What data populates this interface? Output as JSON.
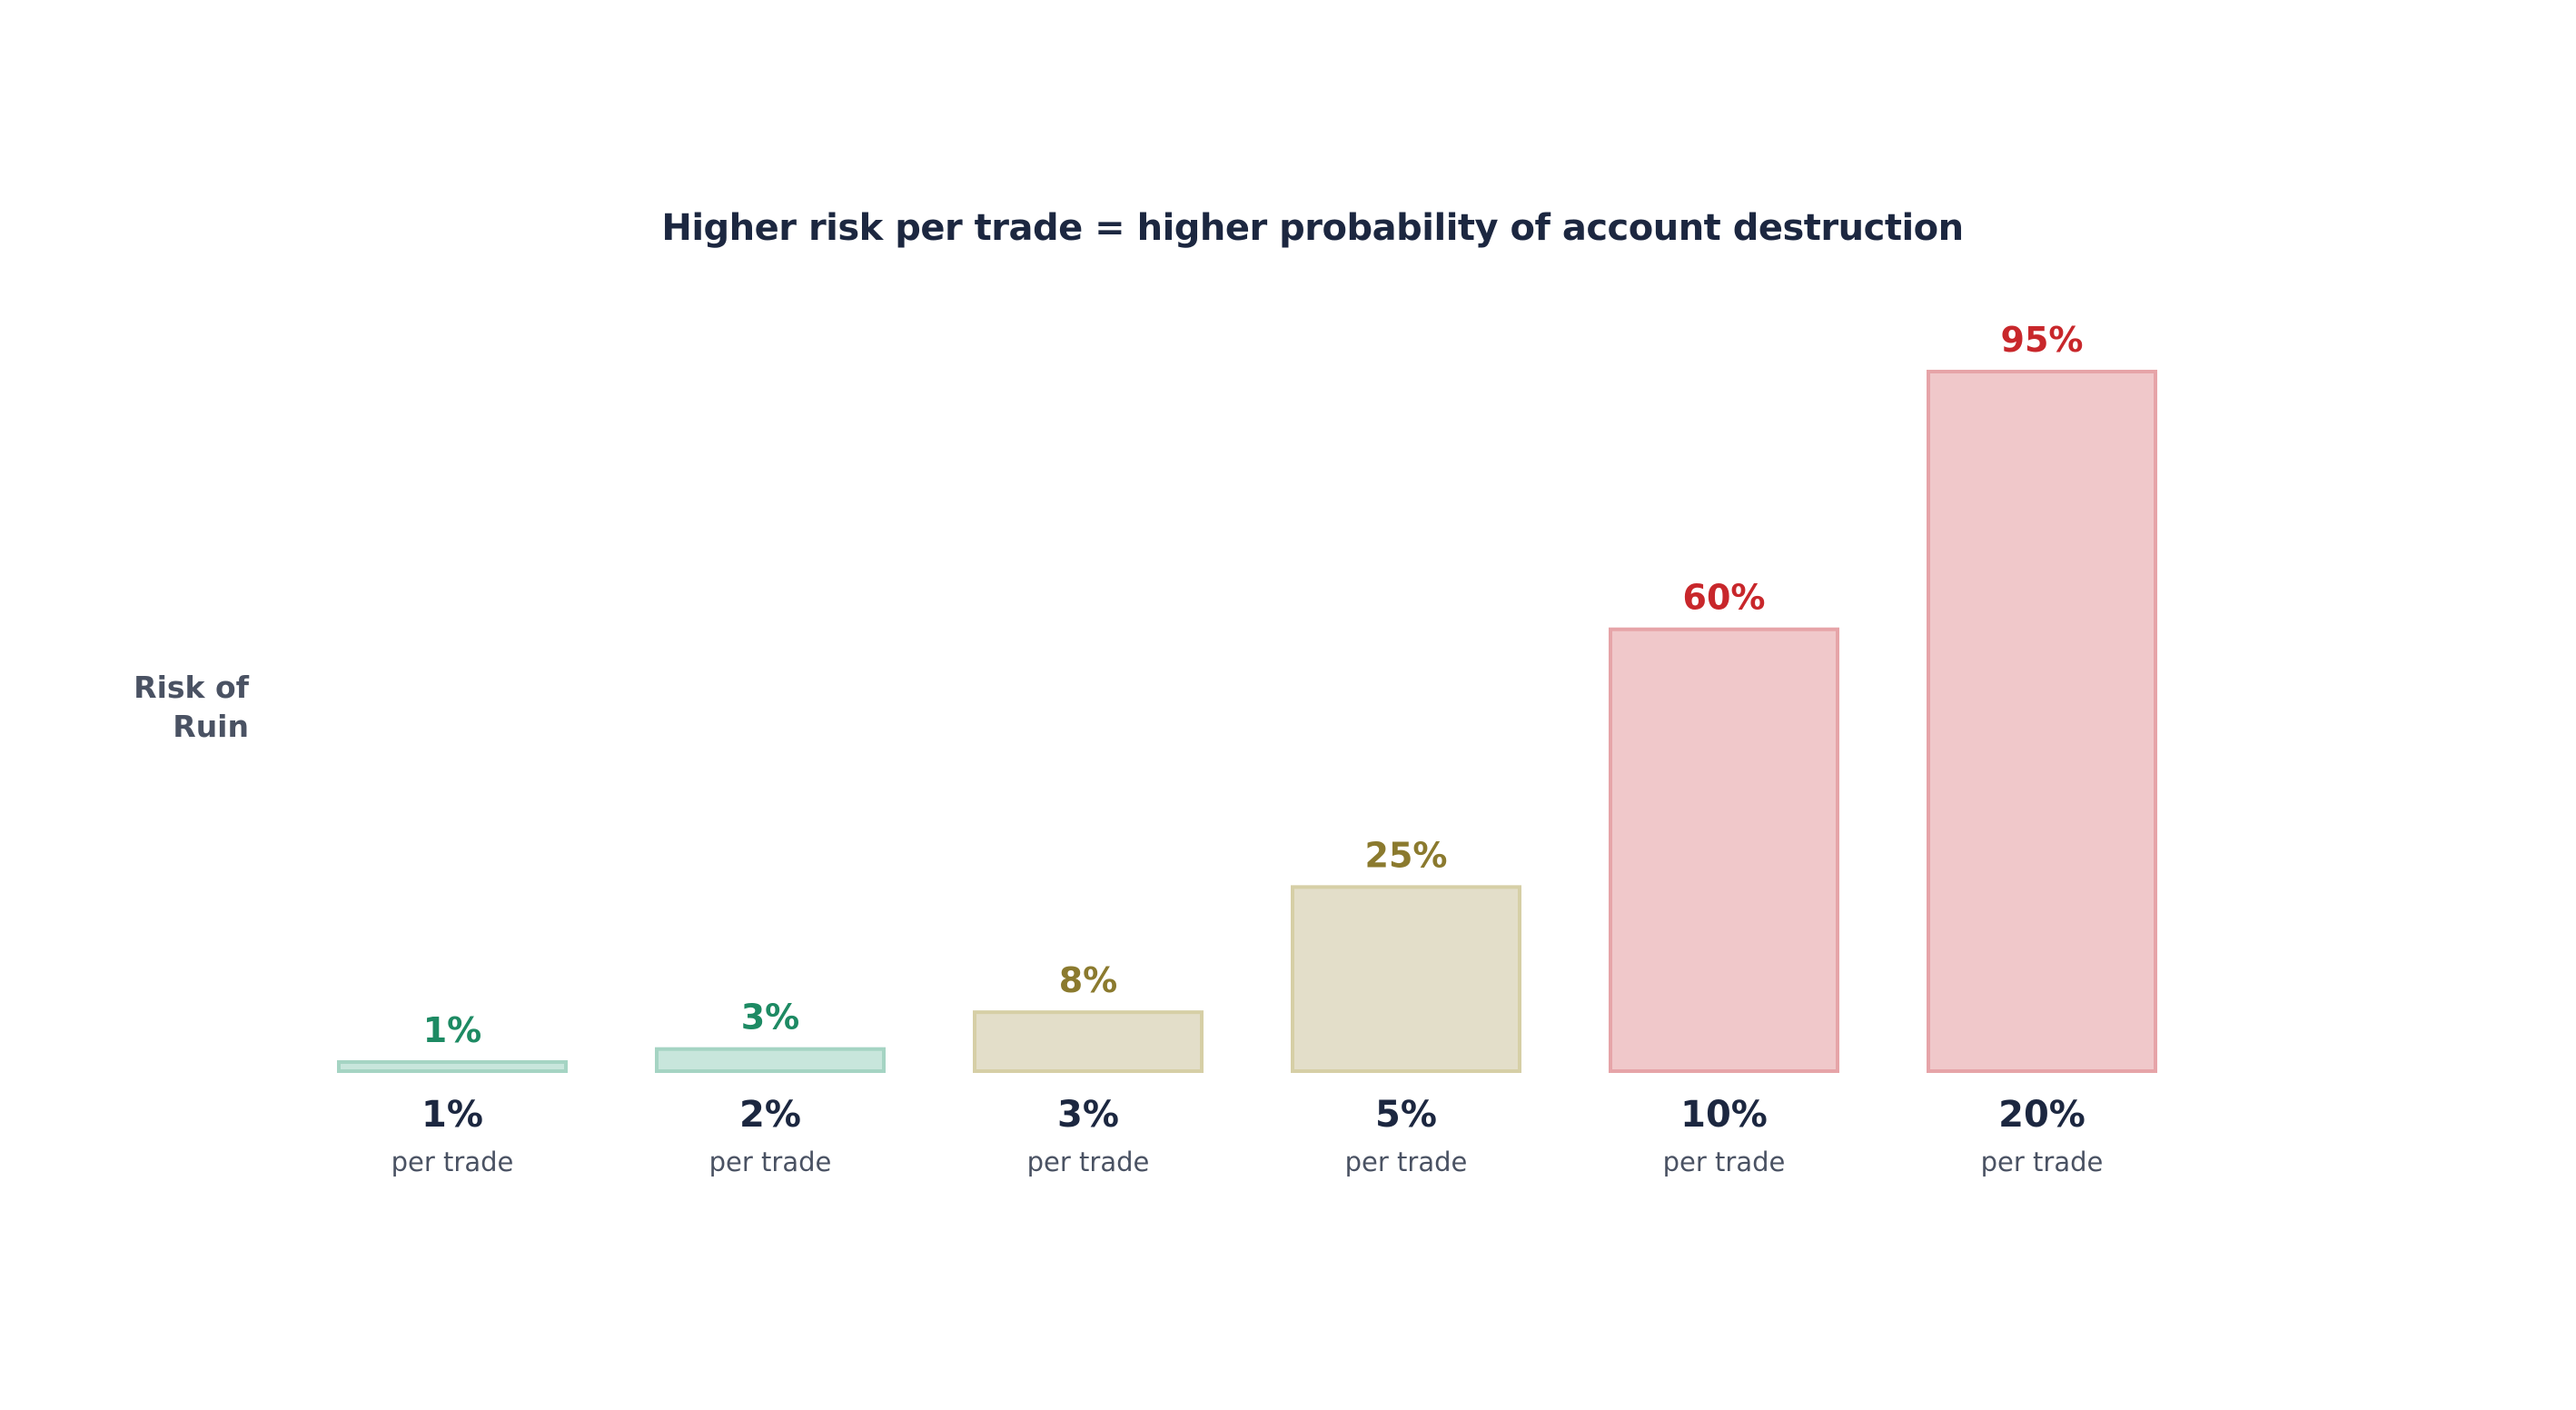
{
  "chart_data": {
    "type": "bar",
    "title": "Higher risk per trade = higher probability of account destruction",
    "ylabel_lines": [
      "Risk of",
      "Ruin"
    ],
    "ylim": [
      0,
      100
    ],
    "grid": false,
    "categories": [
      "1%",
      "2%",
      "3%",
      "5%",
      "10%",
      "20%"
    ],
    "category_sublabel": "per trade",
    "values": [
      1,
      3,
      8,
      25,
      60,
      95
    ],
    "value_labels": [
      "1%",
      "3%",
      "8%",
      "25%",
      "60%",
      "95%"
    ],
    "bar_styles": [
      {
        "fill": "#c8e6dc",
        "stroke": "#a5d4c3",
        "text": "#1d8a63"
      },
      {
        "fill": "#c8e6dc",
        "stroke": "#a5d4c3",
        "text": "#1d8a63"
      },
      {
        "fill": "#e3dec9",
        "stroke": "#d6cfa6",
        "text": "#8b7a2e"
      },
      {
        "fill": "#e3dec9",
        "stroke": "#d6cfa6",
        "text": "#8b7a2e"
      },
      {
        "fill": "#f0c8ca",
        "stroke": "#e6a4a8",
        "text": "#c8272b"
      },
      {
        "fill": "#f0c8ca",
        "stroke": "#e6a4a8",
        "text": "#c8272b"
      }
    ]
  }
}
